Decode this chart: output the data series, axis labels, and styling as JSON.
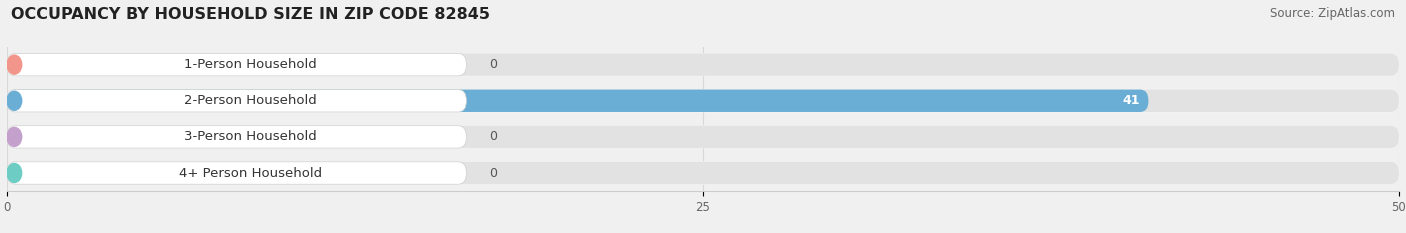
{
  "title": "OCCUPANCY BY HOUSEHOLD SIZE IN ZIP CODE 82845",
  "source": "Source: ZipAtlas.com",
  "categories": [
    "1-Person Household",
    "2-Person Household",
    "3-Person Household",
    "4+ Person Household"
  ],
  "values": [
    0,
    41,
    0,
    0
  ],
  "bar_colors": [
    "#f2958a",
    "#6aaed6",
    "#c4a0cc",
    "#6dcdc4"
  ],
  "xlim": [
    0,
    50
  ],
  "xticks": [
    0,
    25,
    50
  ],
  "background_color": "#f0f0f0",
  "bar_bg_color": "#e2e2e2",
  "row_bg_color": "#f7f7f7",
  "title_fontsize": 11.5,
  "source_fontsize": 8.5,
  "label_fontsize": 9.5,
  "value_fontsize": 9
}
